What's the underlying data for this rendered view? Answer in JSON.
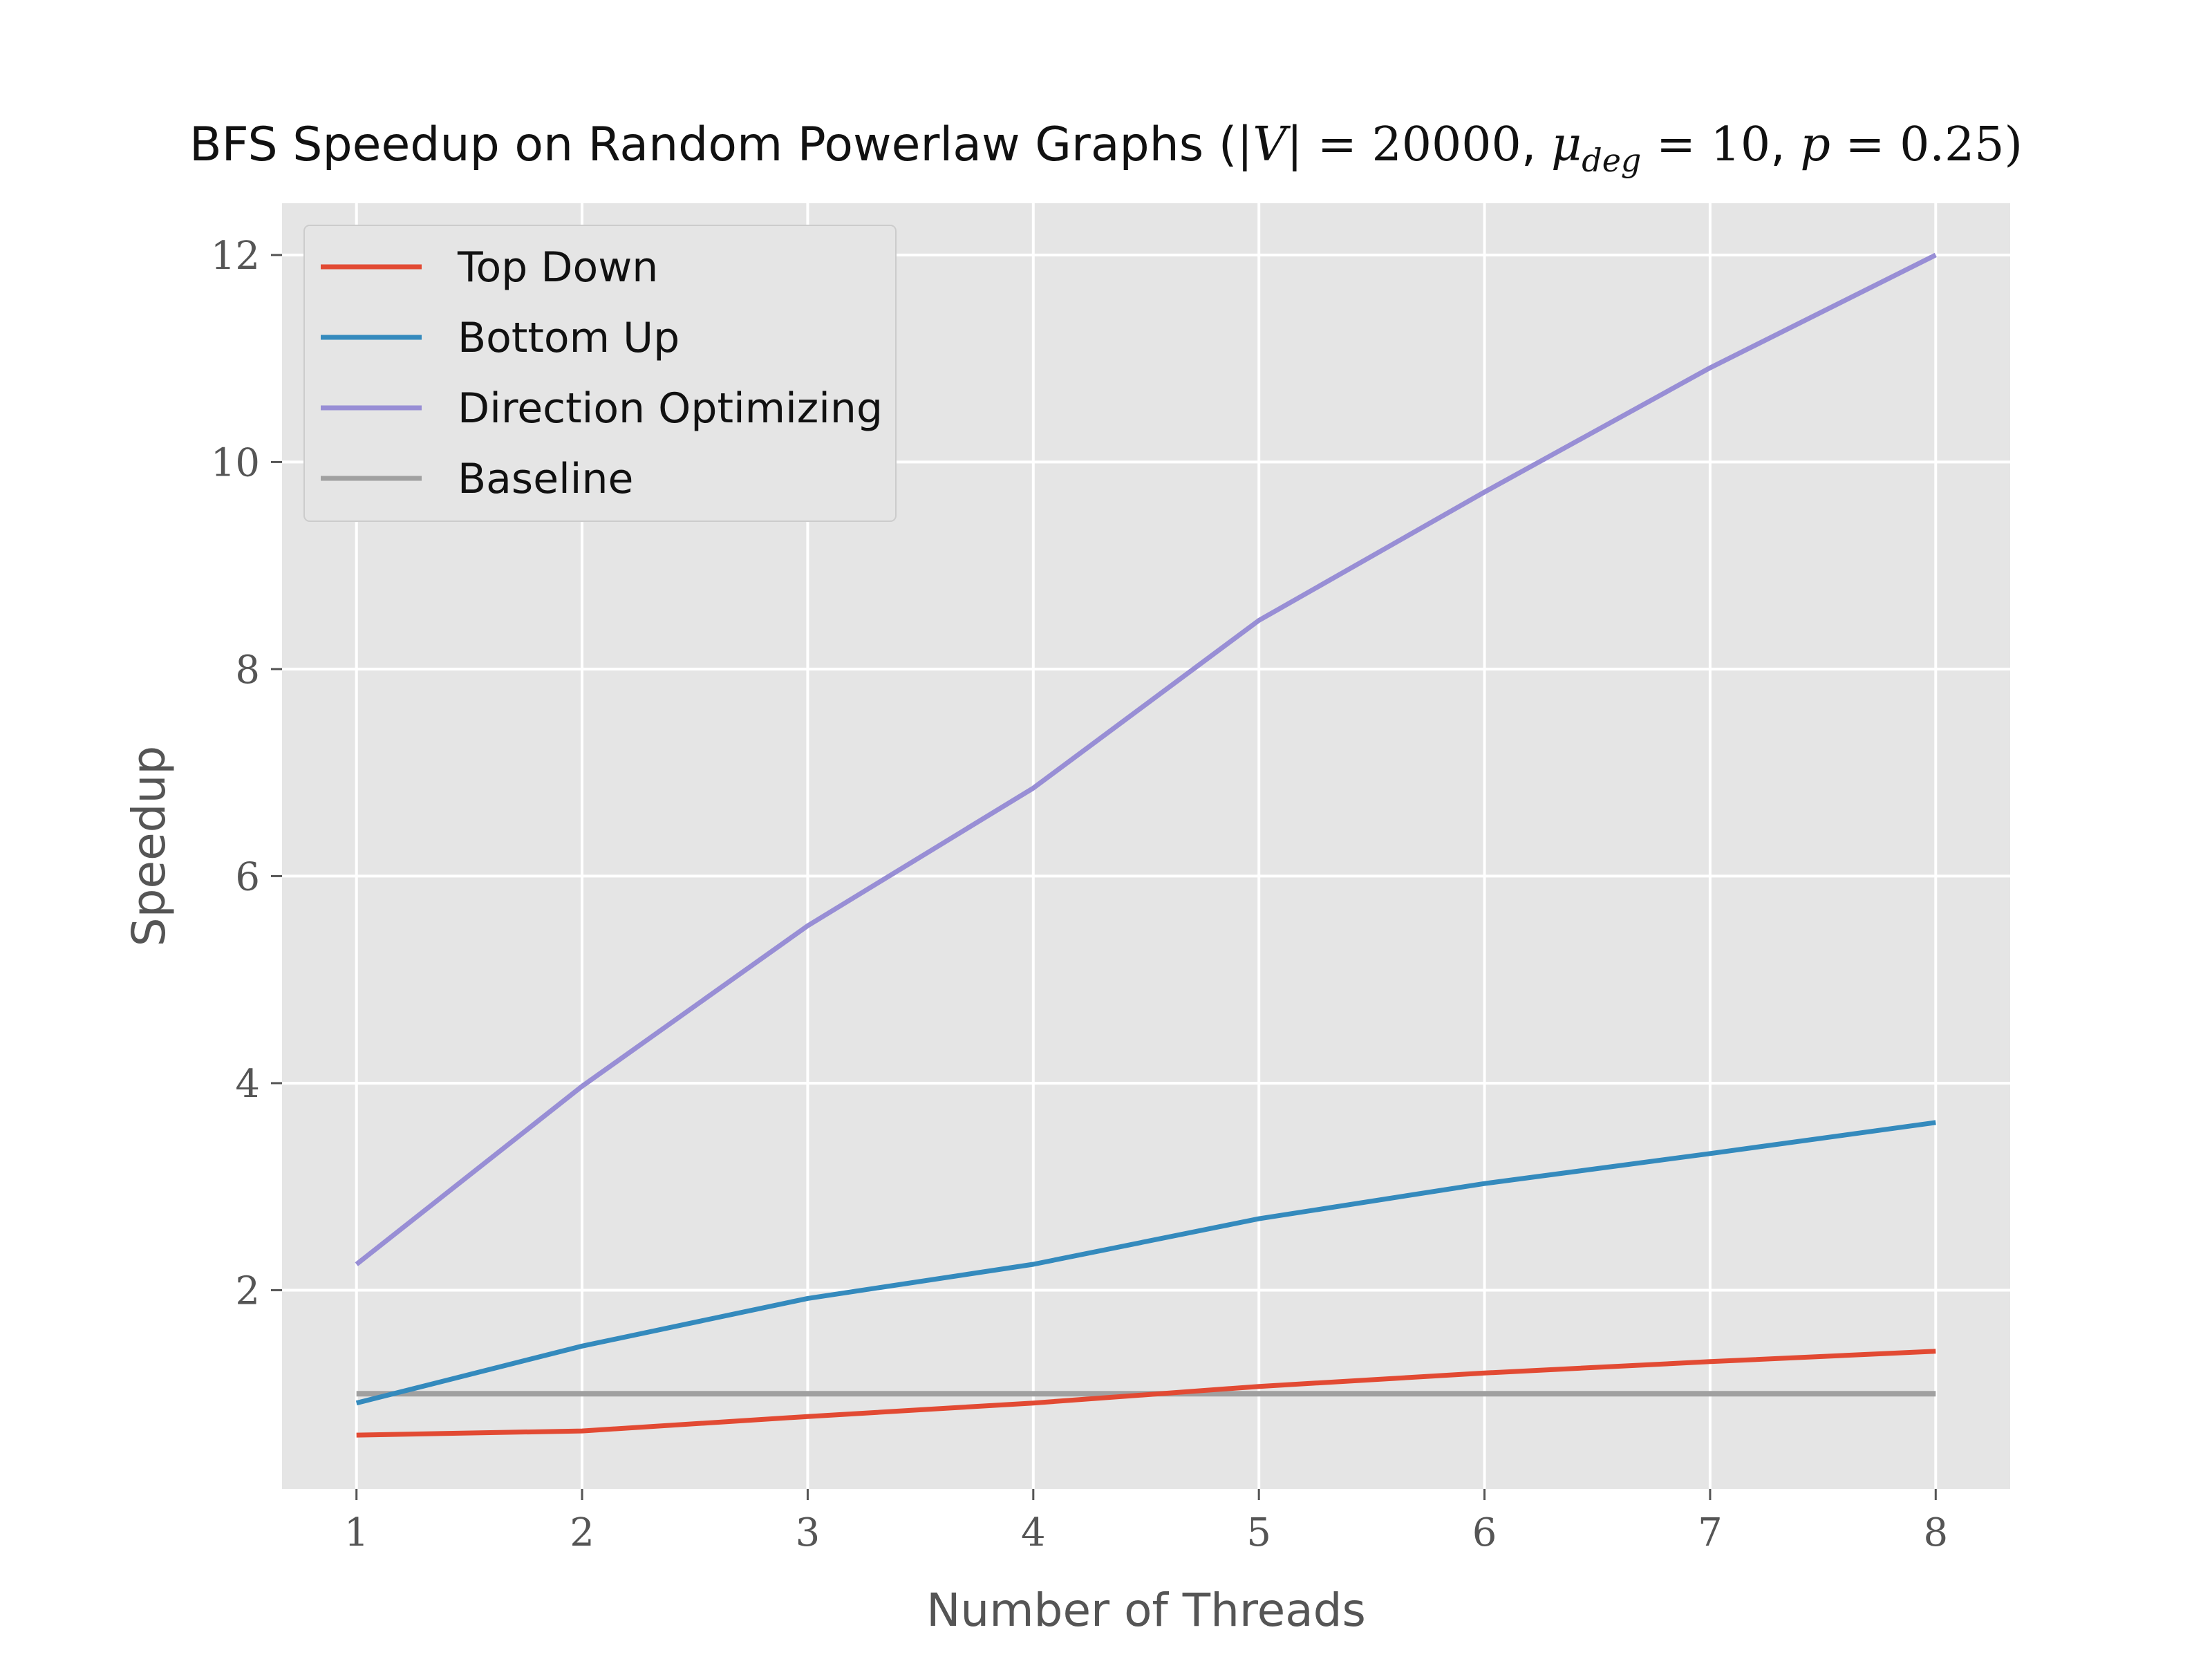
{
  "chart_data": {
    "type": "line",
    "title": {
      "prefix": "BFS Speedup on Random Powerlaw Graphs (",
      "v_label": "|V|",
      "v_eq": " = 20000",
      "sep1": ", ",
      "mu": "μ",
      "mu_sub": "deg",
      "mu_eq": " = 10",
      "sep2": ", ",
      "p": "p",
      "p_eq": " = 0.25",
      "suffix": ")"
    },
    "xlabel": "Number of Threads",
    "ylabel": "Speedup",
    "x": [
      1,
      2,
      3,
      4,
      5,
      6,
      7,
      8
    ],
    "xlim": [
      0.67,
      8.33
    ],
    "ylim": [
      0.08,
      12.5
    ],
    "xticks": [
      1,
      2,
      3,
      4,
      5,
      6,
      7,
      8
    ],
    "yticks": [
      2,
      4,
      6,
      8,
      10,
      12
    ],
    "grid": true,
    "legend_position": "upper-left",
    "series": [
      {
        "name": "Top Down",
        "color": "#E24A33",
        "values": [
          0.6,
          0.64,
          0.78,
          0.91,
          1.07,
          1.2,
          1.31,
          1.41
        ]
      },
      {
        "name": "Bottom Up",
        "color": "#348ABD",
        "values": [
          0.91,
          1.46,
          1.92,
          2.25,
          2.69,
          3.03,
          3.32,
          3.62
        ]
      },
      {
        "name": "Direction Optimizing",
        "color": "#988ED5",
        "values": [
          2.25,
          3.97,
          5.52,
          6.85,
          8.47,
          9.71,
          10.91,
          12.0
        ]
      },
      {
        "name": "Baseline",
        "color": "#A0A0A0",
        "values": [
          1,
          1,
          1,
          1,
          1,
          1,
          1,
          1
        ]
      }
    ]
  }
}
